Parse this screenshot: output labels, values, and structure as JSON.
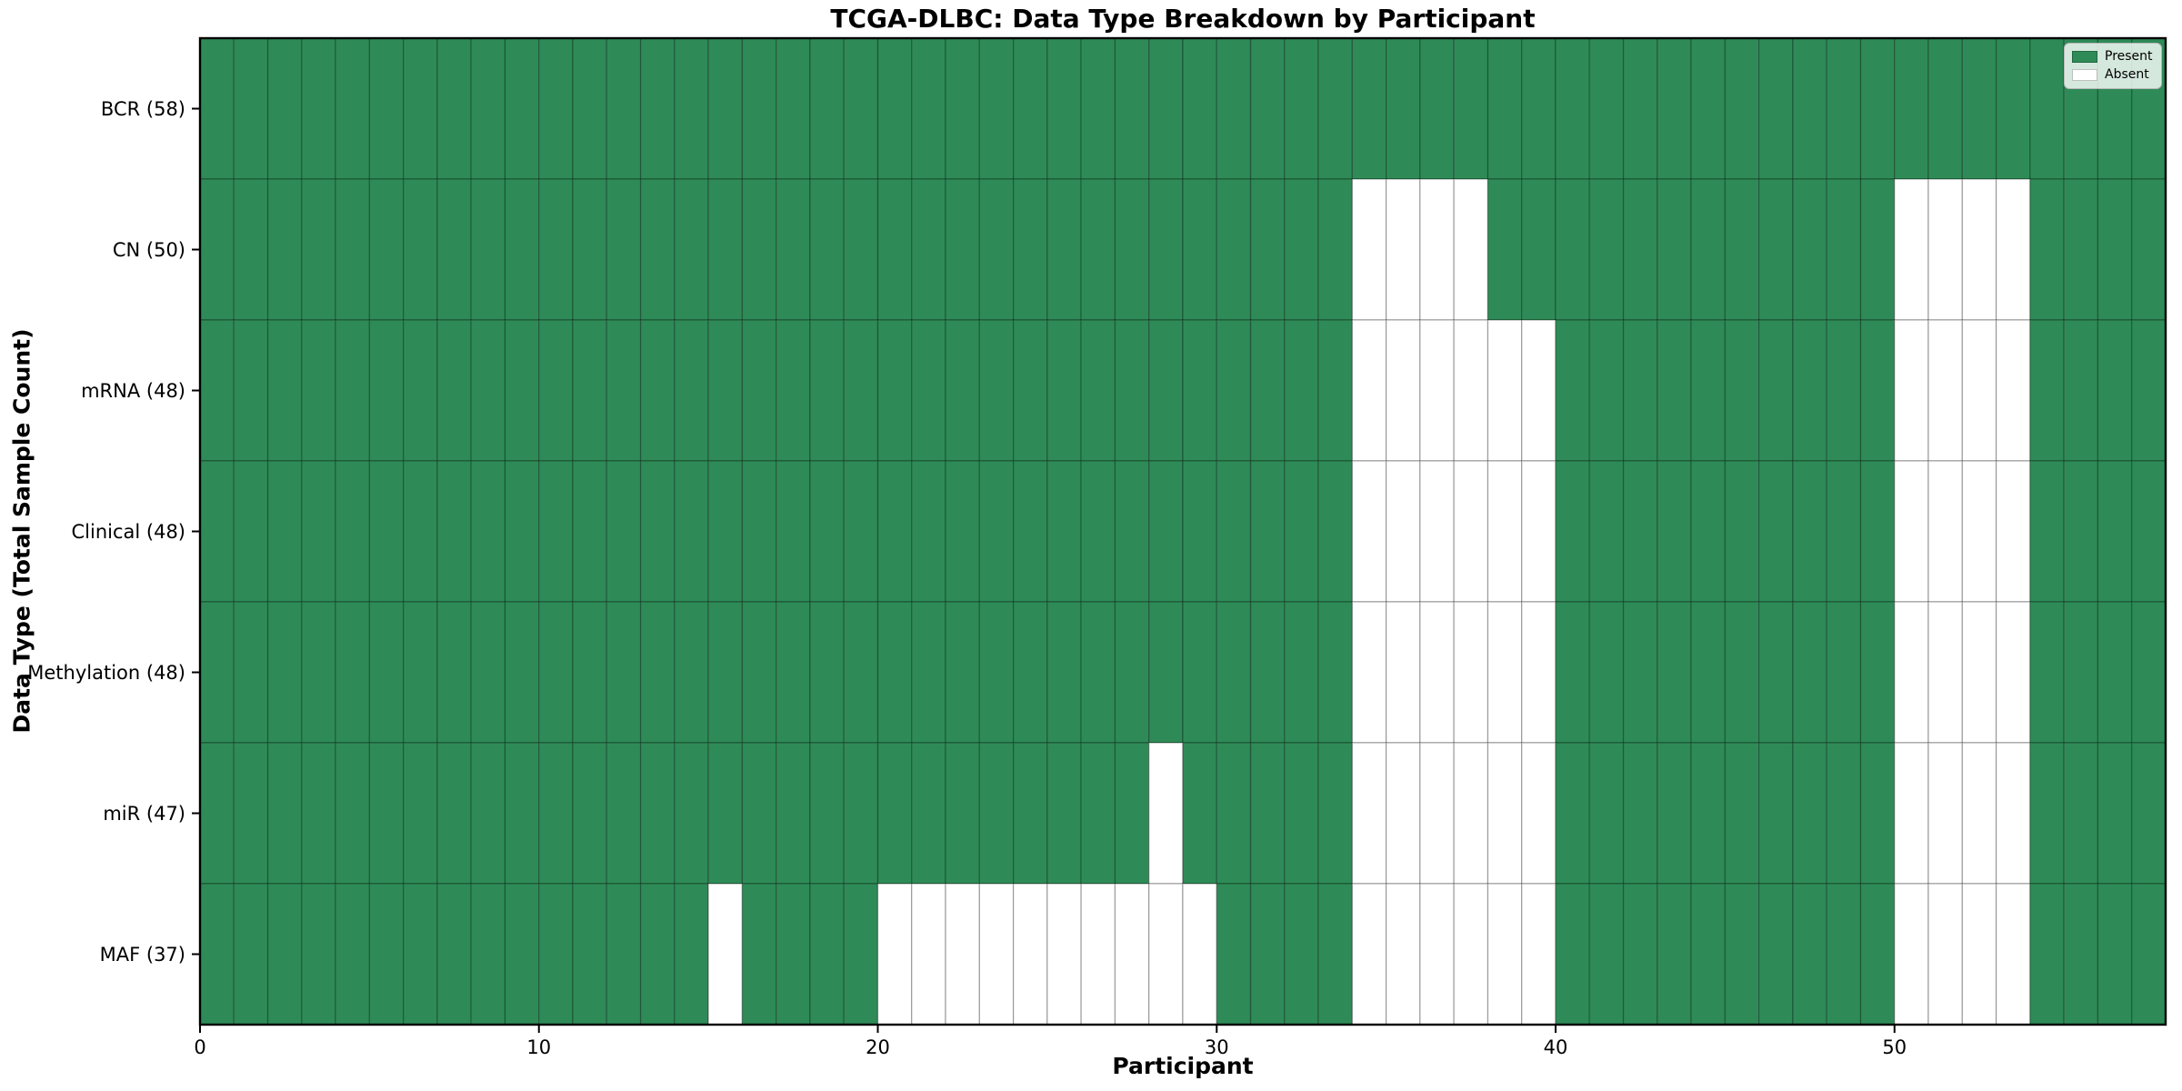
{
  "chart_data": {
    "type": "heatmap",
    "title": "TCGA-DLBC: Data Type Breakdown by Participant",
    "xlabel": "Participant",
    "ylabel": "Data Type (Total Sample Count)",
    "n_participants": 58,
    "x_ticks": [
      0,
      10,
      20,
      30,
      40,
      50
    ],
    "rows": [
      {
        "label": "BCR (58)",
        "absent": []
      },
      {
        "label": "CN (50)",
        "absent": [
          34,
          35,
          36,
          37,
          50,
          51,
          52,
          53
        ]
      },
      {
        "label": "mRNA (48)",
        "absent": [
          34,
          35,
          36,
          37,
          38,
          39,
          50,
          51,
          52,
          53
        ]
      },
      {
        "label": "Clinical (48)",
        "absent": [
          34,
          35,
          36,
          37,
          38,
          39,
          50,
          51,
          52,
          53
        ]
      },
      {
        "label": "Methylation (48)",
        "absent": [
          34,
          35,
          36,
          37,
          38,
          39,
          50,
          51,
          52,
          53
        ]
      },
      {
        "label": "miR (47)",
        "absent": [
          28,
          34,
          35,
          36,
          37,
          38,
          39,
          50,
          51,
          52,
          53
        ]
      },
      {
        "label": "MAF (37)",
        "absent": [
          15,
          20,
          21,
          22,
          23,
          24,
          25,
          26,
          27,
          28,
          29,
          34,
          35,
          36,
          37,
          38,
          39,
          50,
          51,
          52,
          53
        ]
      }
    ],
    "legend": [
      {
        "label": "Present",
        "color": "#2e8b57"
      },
      {
        "label": "Absent",
        "color": "#ffffff"
      }
    ],
    "colors": {
      "present": "#2e8b57",
      "absent": "#ffffff",
      "cell_edge": "rgba(0,0,0,0.28)",
      "spine": "#000000"
    },
    "legend_position": "upper right",
    "grid": "cell-edges"
  }
}
